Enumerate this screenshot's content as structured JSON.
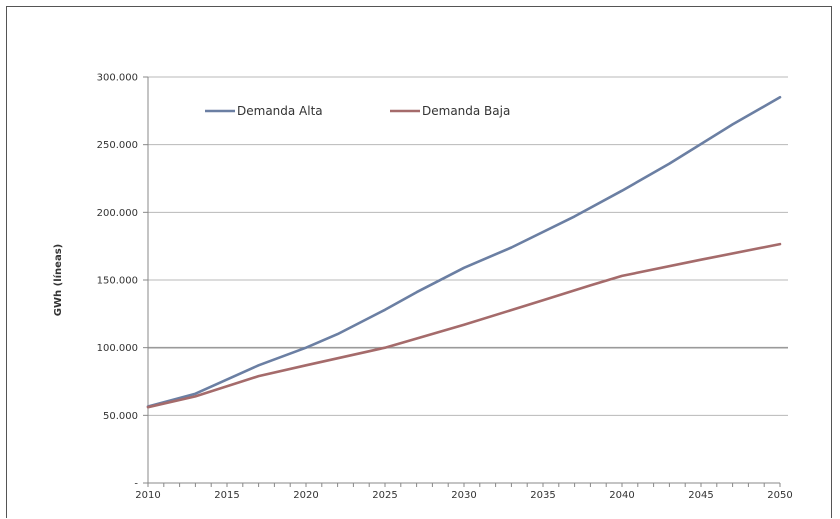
{
  "chart_data": {
    "type": "line",
    "title": "",
    "xlabel": "",
    "ylabel": "GWh (líneas)",
    "xlim": [
      2010,
      2050
    ],
    "ylim": [
      0,
      300000
    ],
    "grid": true,
    "legend_position": "top-left",
    "x_ticks": [
      2010,
      2015,
      2020,
      2025,
      2030,
      2035,
      2040,
      2045,
      2050
    ],
    "x_tick_labels": [
      "2010",
      "2015",
      "2020",
      "2025",
      "2030",
      "2035",
      "2040",
      "2045",
      "2050"
    ],
    "y_ticks": [
      0,
      50000,
      100000,
      150000,
      200000,
      250000,
      300000
    ],
    "y_tick_labels": [
      "-",
      "50.000",
      "100.000",
      "150.000",
      "200.000",
      "250.000",
      "300.000"
    ],
    "series": [
      {
        "name": "Demanda Alta",
        "color": "#6b7fa3",
        "points": [
          [
            2010,
            56500
          ],
          [
            2013,
            66000
          ],
          [
            2017,
            87000
          ],
          [
            2020,
            100000
          ],
          [
            2022,
            110000
          ],
          [
            2025,
            128000
          ],
          [
            2027,
            141000
          ],
          [
            2030,
            159000
          ],
          [
            2033,
            174000
          ],
          [
            2037,
            197000
          ],
          [
            2040,
            216000
          ],
          [
            2043,
            236000
          ],
          [
            2047,
            265000
          ],
          [
            2050,
            285000
          ]
        ]
      },
      {
        "name": "Demanda Baja",
        "color": "#a56b6b",
        "points": [
          [
            2010,
            56000
          ],
          [
            2013,
            64000
          ],
          [
            2017,
            79000
          ],
          [
            2020,
            87000
          ],
          [
            2025,
            100000
          ],
          [
            2030,
            117000
          ],
          [
            2035,
            135000
          ],
          [
            2038,
            146000
          ],
          [
            2040,
            153000
          ],
          [
            2045,
            165000
          ],
          [
            2050,
            176500
          ]
        ]
      }
    ]
  }
}
